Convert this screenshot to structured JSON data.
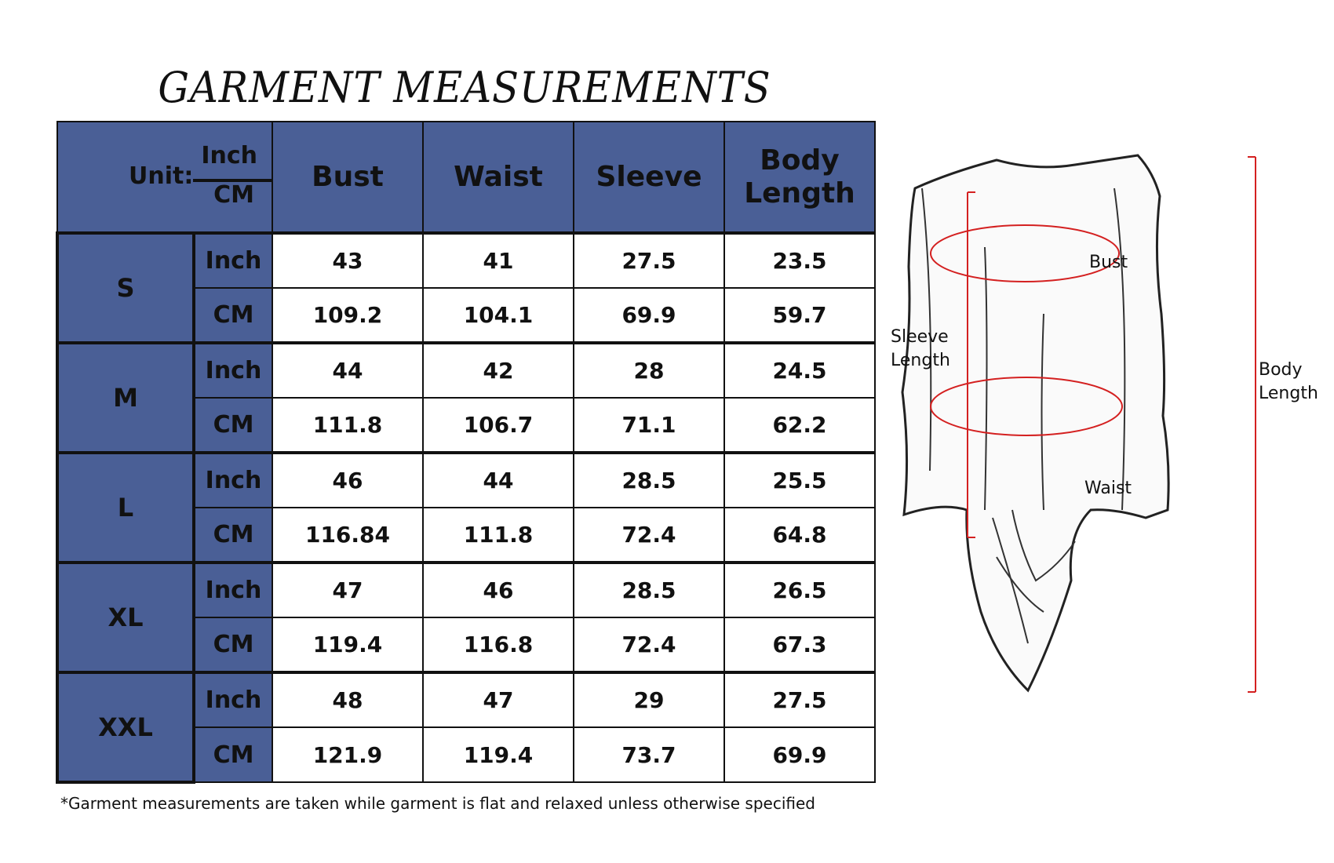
{
  "title": "GARMENT MEASUREMENTS",
  "header": {
    "unit_label": "Unit:",
    "unit_top": "Inch",
    "unit_bottom": "CM",
    "columns": [
      "Bust",
      "Waist",
      "Sleeve",
      "Body Length"
    ]
  },
  "sizes": [
    {
      "size": "S",
      "rows": [
        {
          "unit": "Inch",
          "values": [
            "43",
            "41",
            "27.5",
            "23.5"
          ]
        },
        {
          "unit": "CM",
          "values": [
            "109.2",
            "104.1",
            "69.9",
            "59.7"
          ]
        }
      ]
    },
    {
      "size": "M",
      "rows": [
        {
          "unit": "Inch",
          "values": [
            "44",
            "42",
            "28",
            "24.5"
          ]
        },
        {
          "unit": "CM",
          "values": [
            "111.8",
            "106.7",
            "71.1",
            "62.2"
          ]
        }
      ]
    },
    {
      "size": "L",
      "rows": [
        {
          "unit": "Inch",
          "values": [
            "46",
            "44",
            "28.5",
            "25.5"
          ]
        },
        {
          "unit": "CM",
          "values": [
            "116.84",
            "111.8",
            "72.4",
            "64.8"
          ]
        }
      ]
    },
    {
      "size": "XL",
      "rows": [
        {
          "unit": "Inch",
          "values": [
            "47",
            "46",
            "28.5",
            "26.5"
          ]
        },
        {
          "unit": "CM",
          "values": [
            "119.4",
            "116.8",
            "72.4",
            "67.3"
          ]
        }
      ]
    },
    {
      "size": "XXL",
      "rows": [
        {
          "unit": "Inch",
          "values": [
            "48",
            "47",
            "29",
            "27.5"
          ]
        },
        {
          "unit": "CM",
          "values": [
            "121.9",
            "119.4",
            "73.7",
            "69.9"
          ]
        }
      ]
    }
  ],
  "footnote": "*Garment measurements are taken while garment is flat and relaxed unless otherwise specified",
  "diagram": {
    "bust": "Bust",
    "waist": "Waist",
    "sleeve_length": "Sleeve Length",
    "body_length": "Body Length"
  },
  "colors": {
    "header_blue": "#4a5f96",
    "measure_red": "#d42020"
  }
}
